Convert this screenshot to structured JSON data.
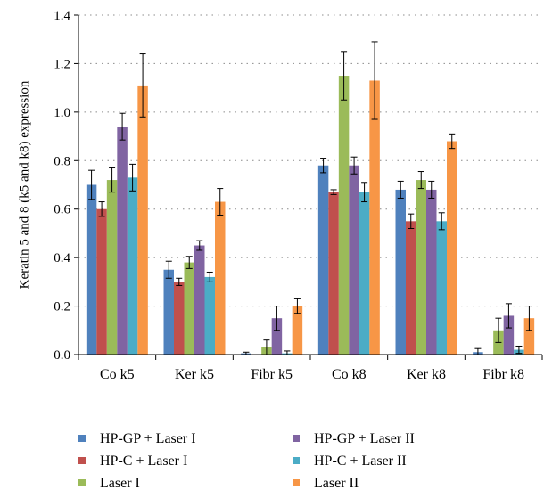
{
  "chart_data": {
    "type": "bar",
    "title": "",
    "xlabel": "",
    "ylabel": "Keratin 5 and 8 (k5 and k8) expression",
    "ylim": [
      0,
      1.4
    ],
    "yticks": [
      "0.0",
      "0.2",
      "0.4",
      "0.6",
      "0.8",
      "1.0",
      "1.2",
      "1.4"
    ],
    "grid": "horizontal dotted",
    "legend_position": "bottom",
    "categories": [
      "Co k5",
      "Ker k5",
      "Fibr k5",
      "Co k8",
      "Ker k8",
      "Fibr k8"
    ],
    "series": [
      {
        "name": "HP-GP + Laser I",
        "color": "#4f81bd",
        "values": [
          0.7,
          0.35,
          0.005,
          0.78,
          0.68,
          0.01
        ],
        "errors": [
          0.06,
          0.035,
          0.005,
          0.03,
          0.035,
          0.015
        ]
      },
      {
        "name": "HP-C + Laser I",
        "color": "#c0504d",
        "values": [
          0.6,
          0.3,
          0.0,
          0.67,
          0.55,
          0.0
        ],
        "errors": [
          0.03,
          0.015,
          0.0,
          0.01,
          0.03,
          0.0
        ]
      },
      {
        "name": "Laser I",
        "color": "#9bbb59",
        "values": [
          0.72,
          0.38,
          0.03,
          1.15,
          0.72,
          0.1
        ],
        "errors": [
          0.05,
          0.025,
          0.03,
          0.1,
          0.035,
          0.05
        ]
      },
      {
        "name": "HP-GP + Laser II",
        "color": "#8064a2",
        "values": [
          0.94,
          0.45,
          0.15,
          0.78,
          0.68,
          0.16
        ],
        "errors": [
          0.055,
          0.02,
          0.05,
          0.035,
          0.035,
          0.05
        ]
      },
      {
        "name": "HP-C + Laser II",
        "color": "#4bacc6",
        "values": [
          0.73,
          0.32,
          0.005,
          0.67,
          0.55,
          0.02
        ],
        "errors": [
          0.055,
          0.02,
          0.01,
          0.04,
          0.035,
          0.015
        ]
      },
      {
        "name": "Laser II",
        "color": "#f79646",
        "values": [
          1.11,
          0.63,
          0.2,
          1.13,
          0.88,
          0.15
        ],
        "errors": [
          0.13,
          0.055,
          0.03,
          0.16,
          0.03,
          0.05
        ]
      }
    ]
  }
}
